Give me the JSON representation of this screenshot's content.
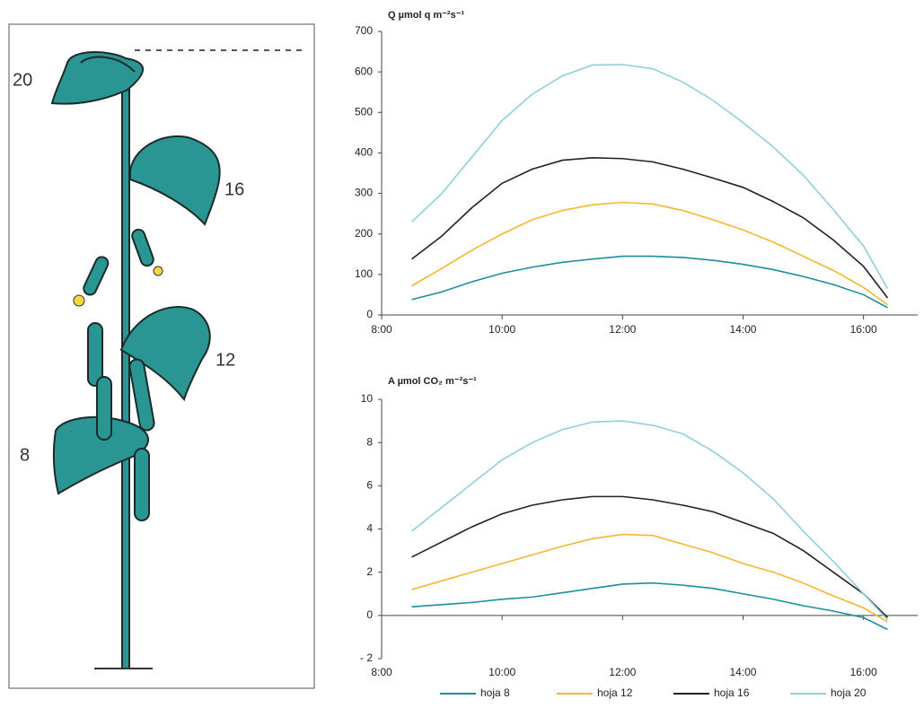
{
  "illustration": {
    "labels": [
      "20",
      "16",
      "12",
      "8"
    ]
  },
  "chart_data": [
    {
      "type": "line",
      "title": "Q µmol q m⁻²s⁻¹",
      "x": [
        8.5,
        9,
        9.5,
        10,
        10.5,
        11,
        11.5,
        12,
        12.5,
        13,
        13.5,
        14,
        14.5,
        15,
        15.5,
        16,
        16.4
      ],
      "xlim": [
        8,
        16.9
      ],
      "xticks": [
        {
          "value": 8,
          "label": "8:00"
        },
        {
          "value": 10,
          "label": "10:00"
        },
        {
          "value": 12,
          "label": "12:00"
        },
        {
          "value": 14,
          "label": "14:00"
        },
        {
          "value": 16,
          "label": "16:00"
        }
      ],
      "ylim": [
        0,
        700
      ],
      "yticks": [
        0,
        100,
        200,
        300,
        400,
        500,
        600,
        700
      ],
      "series": [
        {
          "color": "#1a8fa0",
          "values": [
            38,
            57,
            82,
            103,
            118,
            130,
            138,
            145,
            145,
            142,
            135,
            125,
            112,
            95,
            75,
            50,
            18
          ]
        },
        {
          "color": "#f5b731",
          "values": [
            72,
            115,
            160,
            200,
            235,
            258,
            272,
            278,
            274,
            258,
            235,
            210,
            180,
            145,
            110,
            68,
            25
          ]
        },
        {
          "color": "#222222",
          "values": [
            138,
            195,
            265,
            325,
            360,
            382,
            388,
            386,
            378,
            360,
            338,
            315,
            280,
            240,
            185,
            120,
            42
          ]
        },
        {
          "color": "#8fd0dc",
          "values": [
            230,
            300,
            390,
            480,
            545,
            590,
            617,
            618,
            608,
            575,
            530,
            475,
            415,
            345,
            260,
            170,
            65
          ]
        }
      ]
    },
    {
      "type": "line",
      "title": "A µmol CO₂ m⁻²s⁻¹",
      "x": [
        8.5,
        9,
        9.5,
        10,
        10.5,
        11,
        11.5,
        12,
        12.5,
        13,
        13.5,
        14,
        14.5,
        15,
        15.5,
        16,
        16.4
      ],
      "xlim": [
        8,
        16.9
      ],
      "xticks": [
        {
          "value": 8,
          "label": "8:00"
        },
        {
          "value": 10,
          "label": "10:00"
        },
        {
          "value": 12,
          "label": "12:00"
        },
        {
          "value": 14,
          "label": "14:00"
        },
        {
          "value": 16,
          "label": "16:00"
        }
      ],
      "ylim": [
        -2,
        10
      ],
      "yticks": [
        {
          "value": -2,
          "label": "- 2"
        },
        0,
        2,
        4,
        6,
        8,
        10
      ],
      "series": [
        {
          "name": "hoja 8",
          "color": "#1a8fa0",
          "values": [
            0.4,
            0.5,
            0.6,
            0.75,
            0.85,
            1.05,
            1.25,
            1.45,
            1.5,
            1.4,
            1.25,
            1.0,
            0.75,
            0.45,
            0.2,
            -0.1,
            -0.65
          ]
        },
        {
          "name": "hoja 12",
          "color": "#f5b731",
          "values": [
            1.2,
            1.6,
            2.0,
            2.4,
            2.8,
            3.2,
            3.55,
            3.75,
            3.7,
            3.3,
            2.9,
            2.4,
            2.0,
            1.5,
            0.9,
            0.35,
            -0.3
          ]
        },
        {
          "name": "hoja 16",
          "color": "#222222",
          "values": [
            2.7,
            3.4,
            4.1,
            4.7,
            5.1,
            5.35,
            5.5,
            5.5,
            5.35,
            5.1,
            4.8,
            4.3,
            3.8,
            3.0,
            2.0,
            1.0,
            -0.1
          ]
        },
        {
          "name": "hoja 20",
          "color": "#8fd0dc",
          "values": [
            3.9,
            5.0,
            6.1,
            7.2,
            8.0,
            8.6,
            8.95,
            9.0,
            8.8,
            8.4,
            7.6,
            6.6,
            5.4,
            3.9,
            2.5,
            1.0,
            -0.2
          ]
        }
      ]
    }
  ]
}
